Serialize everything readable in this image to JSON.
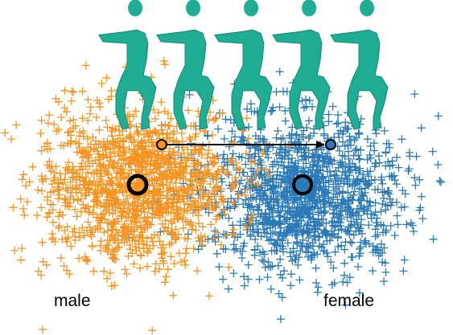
{
  "labels": {
    "left": "male",
    "right": "female"
  }
}
